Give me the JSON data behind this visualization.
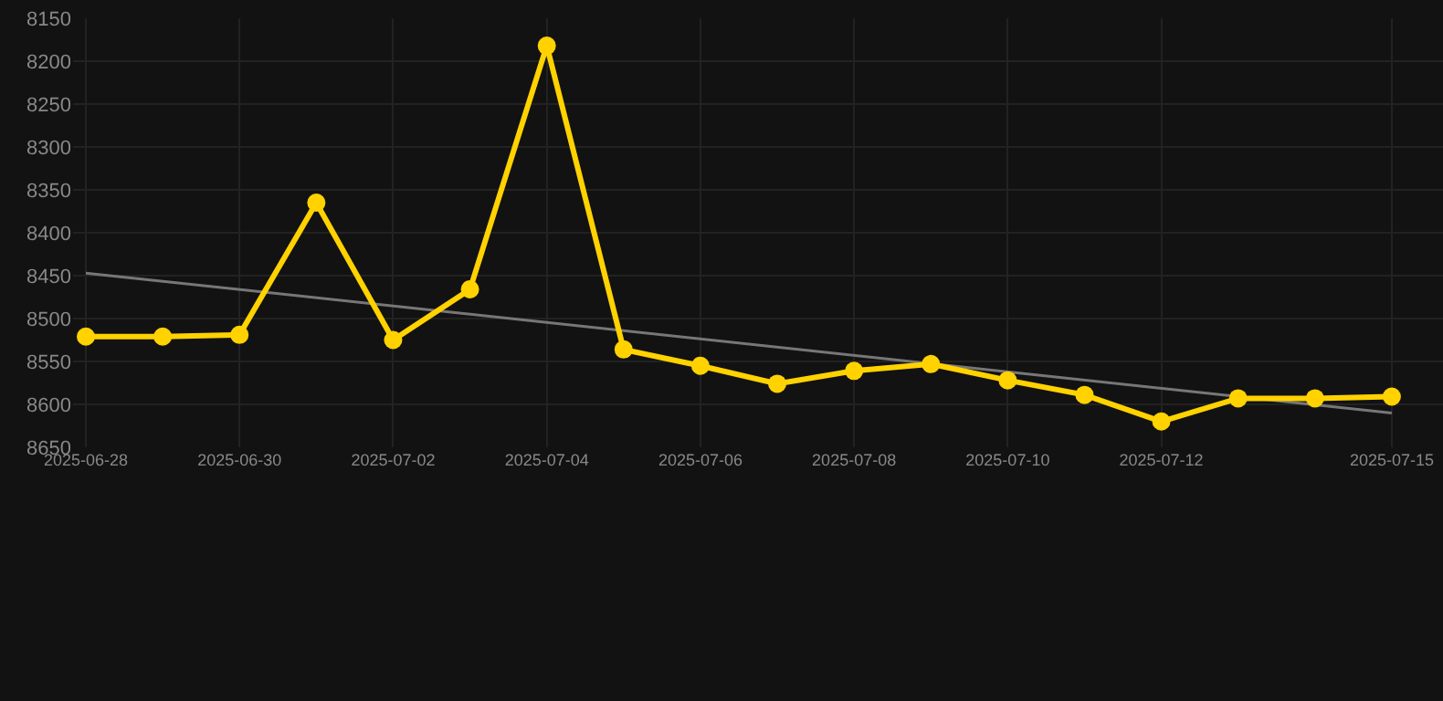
{
  "chart_data": {
    "type": "line",
    "x": [
      "2025-06-28",
      "2025-06-29",
      "2025-06-30",
      "2025-07-01",
      "2025-07-02",
      "2025-07-03",
      "2025-07-04",
      "2025-07-05",
      "2025-07-06",
      "2025-07-07",
      "2025-07-08",
      "2025-07-09",
      "2025-07-10",
      "2025-07-11",
      "2025-07-12",
      "2025-07-13",
      "2025-07-14",
      "2025-07-15"
    ],
    "series": [
      {
        "color": "#ffd200",
        "marker": "circle",
        "values": [
          8521,
          8521,
          8519,
          8365,
          8525,
          8466,
          8182,
          8536,
          8555,
          8576,
          8561,
          8553,
          8572,
          8589,
          8620,
          8593,
          8593,
          8591
        ]
      },
      {
        "type": "line",
        "color": "#777777",
        "marker": "none",
        "x": [
          "2025-06-28",
          "2025-07-15"
        ],
        "values": [
          8447,
          8610
        ]
      }
    ],
    "xlim": [
      "2025-06-27T20:00",
      "2025-07-15T16:00"
    ],
    "xticks": [
      {
        "value": "2025-06-28",
        "label": "2025-06-28"
      },
      {
        "value": "2025-06-30",
        "label": "2025-06-30"
      },
      {
        "value": "2025-07-02",
        "label": "2025-07-02"
      },
      {
        "value": "2025-07-04",
        "label": "2025-07-04"
      },
      {
        "value": "2025-07-06",
        "label": "2025-07-06"
      },
      {
        "value": "2025-07-08",
        "label": "2025-07-08"
      },
      {
        "value": "2025-07-10",
        "label": "2025-07-10"
      },
      {
        "value": "2025-07-12",
        "label": "2025-07-12"
      },
      {
        "value": "2025-07-15",
        "label": "2025-07-15"
      }
    ],
    "ylim": [
      8650,
      8150
    ],
    "yticks": [
      8150,
      8200,
      8250,
      8300,
      8350,
      8400,
      8450,
      8500,
      8550,
      8600,
      8650
    ],
    "grid": true,
    "line_style": "solid"
  }
}
